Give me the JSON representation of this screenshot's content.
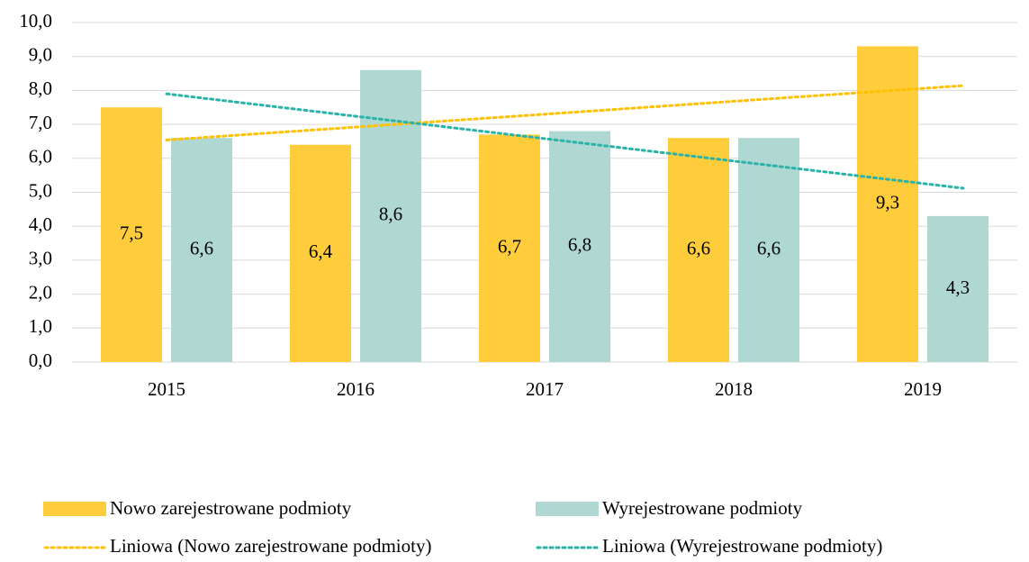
{
  "chart_data": {
    "type": "bar",
    "categories": [
      "2015",
      "2016",
      "2017",
      "2018",
      "2019"
    ],
    "series": [
      {
        "name": "Nowo zarejestrowane podmioty",
        "color": "#ffcd3c",
        "values": [
          7.5,
          6.4,
          6.7,
          6.6,
          9.3
        ],
        "value_labels": [
          "7,5",
          "6,4",
          "6,7",
          "6,6",
          "9,3"
        ]
      },
      {
        "name": "Wyrejestrowane podmioty",
        "color": "#afd8d3",
        "values": [
          6.6,
          8.6,
          6.8,
          6.6,
          4.3
        ],
        "value_labels": [
          "6,6",
          "8,6",
          "6,8",
          "6,6",
          "4,3"
        ]
      }
    ],
    "trendlines": [
      {
        "name": "Liniowa (Nowo zarejestrowane podmioty)",
        "color": "#ffc000",
        "series": 0
      },
      {
        "name": "Liniowa (Wyrejestrowane podmioty)",
        "color": "#2ab3a6",
        "series": 1
      }
    ],
    "ylim": [
      0,
      10
    ],
    "yticks": [
      {
        "value": 0,
        "label": "0,0"
      },
      {
        "value": 1,
        "label": "1,0"
      },
      {
        "value": 2,
        "label": "2,0"
      },
      {
        "value": 3,
        "label": "3,0"
      },
      {
        "value": 4,
        "label": "4,0"
      },
      {
        "value": 5,
        "label": "5,0"
      },
      {
        "value": 6,
        "label": "6,0"
      },
      {
        "value": 7,
        "label": "7,0"
      },
      {
        "value": 8,
        "label": "8,0"
      },
      {
        "value": 9,
        "label": "9,0"
      },
      {
        "value": 10,
        "label": "10,0"
      }
    ],
    "grid": true
  }
}
